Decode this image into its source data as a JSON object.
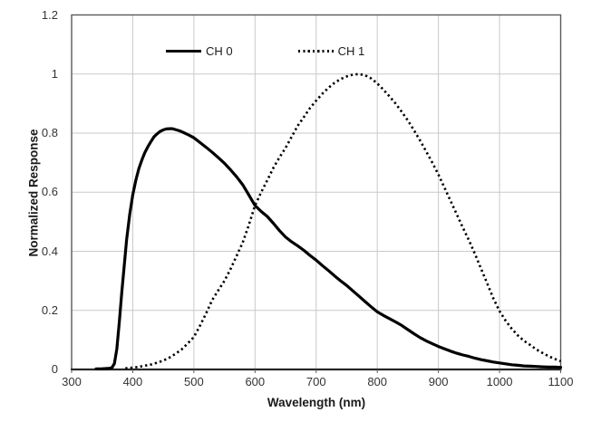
{
  "chart_data": {
    "type": "line",
    "title": "",
    "xlabel": "Wavelength (nm)",
    "ylabel": "Normalized Response",
    "xlim": [
      300,
      1100
    ],
    "ylim": [
      0,
      1.2
    ],
    "x_ticks": [
      300,
      400,
      500,
      600,
      700,
      800,
      900,
      1000,
      1100
    ],
    "y_ticks": [
      "0",
      "0.2",
      "0.4",
      "0.6",
      "0.8",
      "1",
      "1.2"
    ],
    "grid": true,
    "legend_position": "top-inside",
    "colors": {
      "gridline": "#c9c9c9",
      "border": "#595959",
      "axis": "#262626",
      "series": "#000000",
      "text": "#333333"
    },
    "series": [
      {
        "name": "CH 0",
        "style": "solid",
        "color": "#000000",
        "points": [
          [
            340,
            0.002
          ],
          [
            348,
            0.002
          ],
          [
            356,
            0.003
          ],
          [
            362,
            0.004
          ],
          [
            366,
            0.006
          ],
          [
            370,
            0.02
          ],
          [
            374,
            0.07
          ],
          [
            378,
            0.16
          ],
          [
            382,
            0.26
          ],
          [
            386,
            0.35
          ],
          [
            390,
            0.44
          ],
          [
            395,
            0.525
          ],
          [
            400,
            0.59
          ],
          [
            405,
            0.64
          ],
          [
            410,
            0.68
          ],
          [
            415,
            0.71
          ],
          [
            420,
            0.735
          ],
          [
            425,
            0.755
          ],
          [
            430,
            0.772
          ],
          [
            435,
            0.788
          ],
          [
            440,
            0.798
          ],
          [
            445,
            0.806
          ],
          [
            450,
            0.811
          ],
          [
            455,
            0.814
          ],
          [
            460,
            0.815
          ],
          [
            465,
            0.815
          ],
          [
            470,
            0.812
          ],
          [
            475,
            0.809
          ],
          [
            480,
            0.805
          ],
          [
            485,
            0.8
          ],
          [
            490,
            0.795
          ],
          [
            495,
            0.79
          ],
          [
            500,
            0.784
          ],
          [
            510,
            0.768
          ],
          [
            520,
            0.752
          ],
          [
            530,
            0.735
          ],
          [
            540,
            0.717
          ],
          [
            550,
            0.698
          ],
          [
            560,
            0.676
          ],
          [
            570,
            0.652
          ],
          [
            580,
            0.625
          ],
          [
            590,
            0.59
          ],
          [
            600,
            0.555
          ],
          [
            610,
            0.535
          ],
          [
            620,
            0.518
          ],
          [
            630,
            0.495
          ],
          [
            640,
            0.47
          ],
          [
            650,
            0.448
          ],
          [
            660,
            0.432
          ],
          [
            670,
            0.418
          ],
          [
            680,
            0.403
          ],
          [
            690,
            0.386
          ],
          [
            700,
            0.37
          ],
          [
            710,
            0.352
          ],
          [
            720,
            0.335
          ],
          [
            730,
            0.317
          ],
          [
            740,
            0.3
          ],
          [
            750,
            0.284
          ],
          [
            760,
            0.266
          ],
          [
            770,
            0.248
          ],
          [
            780,
            0.23
          ],
          [
            790,
            0.212
          ],
          [
            800,
            0.195
          ],
          [
            810,
            0.183
          ],
          [
            820,
            0.172
          ],
          [
            830,
            0.161
          ],
          [
            840,
            0.149
          ],
          [
            850,
            0.135
          ],
          [
            860,
            0.121
          ],
          [
            870,
            0.108
          ],
          [
            880,
            0.097
          ],
          [
            890,
            0.087
          ],
          [
            900,
            0.078
          ],
          [
            910,
            0.07
          ],
          [
            920,
            0.062
          ],
          [
            930,
            0.055
          ],
          [
            940,
            0.049
          ],
          [
            950,
            0.044
          ],
          [
            960,
            0.038
          ],
          [
            970,
            0.033
          ],
          [
            980,
            0.029
          ],
          [
            990,
            0.025
          ],
          [
            1000,
            0.022
          ],
          [
            1010,
            0.019
          ],
          [
            1020,
            0.016
          ],
          [
            1030,
            0.014
          ],
          [
            1040,
            0.012
          ],
          [
            1050,
            0.011
          ],
          [
            1060,
            0.01
          ],
          [
            1070,
            0.009
          ],
          [
            1080,
            0.008
          ],
          [
            1090,
            0.008
          ],
          [
            1100,
            0.007
          ]
        ]
      },
      {
        "name": "CH 1",
        "style": "dotted",
        "color": "#000000",
        "points": [
          [
            388,
            0.004
          ],
          [
            400,
            0.006
          ],
          [
            410,
            0.009
          ],
          [
            420,
            0.013
          ],
          [
            430,
            0.017
          ],
          [
            440,
            0.023
          ],
          [
            450,
            0.03
          ],
          [
            460,
            0.04
          ],
          [
            470,
            0.053
          ],
          [
            480,
            0.068
          ],
          [
            490,
            0.088
          ],
          [
            500,
            0.11
          ],
          [
            510,
            0.148
          ],
          [
            520,
            0.19
          ],
          [
            530,
            0.235
          ],
          [
            540,
            0.268
          ],
          [
            550,
            0.3
          ],
          [
            560,
            0.34
          ],
          [
            570,
            0.385
          ],
          [
            580,
            0.43
          ],
          [
            590,
            0.49
          ],
          [
            600,
            0.555
          ],
          [
            610,
            0.6
          ],
          [
            620,
            0.64
          ],
          [
            630,
            0.682
          ],
          [
            640,
            0.718
          ],
          [
            650,
            0.75
          ],
          [
            660,
            0.788
          ],
          [
            670,
            0.825
          ],
          [
            680,
            0.855
          ],
          [
            690,
            0.885
          ],
          [
            700,
            0.91
          ],
          [
            710,
            0.933
          ],
          [
            720,
            0.953
          ],
          [
            730,
            0.97
          ],
          [
            740,
            0.983
          ],
          [
            750,
            0.992
          ],
          [
            760,
            0.998
          ],
          [
            770,
            1.0
          ],
          [
            780,
            0.996
          ],
          [
            790,
            0.985
          ],
          [
            800,
            0.968
          ],
          [
            810,
            0.947
          ],
          [
            820,
            0.924
          ],
          [
            830,
            0.9
          ],
          [
            840,
            0.872
          ],
          [
            850,
            0.843
          ],
          [
            860,
            0.81
          ],
          [
            870,
            0.775
          ],
          [
            880,
            0.738
          ],
          [
            890,
            0.7
          ],
          [
            900,
            0.66
          ],
          [
            910,
            0.615
          ],
          [
            920,
            0.57
          ],
          [
            930,
            0.525
          ],
          [
            940,
            0.48
          ],
          [
            950,
            0.437
          ],
          [
            960,
            0.39
          ],
          [
            970,
            0.34
          ],
          [
            980,
            0.29
          ],
          [
            990,
            0.24
          ],
          [
            1000,
            0.197
          ],
          [
            1010,
            0.165
          ],
          [
            1020,
            0.138
          ],
          [
            1030,
            0.115
          ],
          [
            1040,
            0.097
          ],
          [
            1050,
            0.083
          ],
          [
            1060,
            0.068
          ],
          [
            1070,
            0.056
          ],
          [
            1080,
            0.045
          ],
          [
            1090,
            0.036
          ],
          [
            1100,
            0.028
          ]
        ]
      }
    ]
  }
}
